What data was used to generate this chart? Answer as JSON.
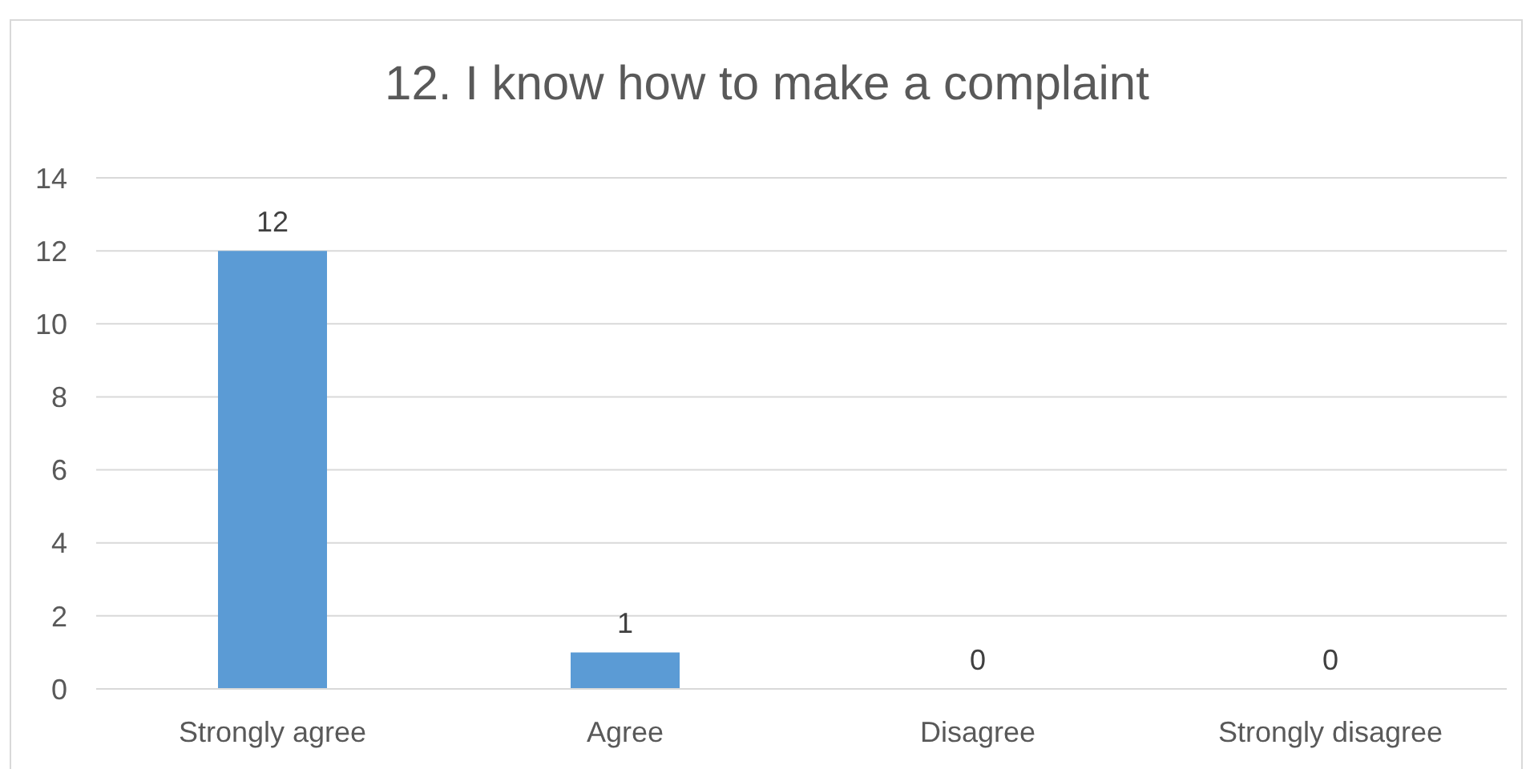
{
  "chart_data": {
    "type": "bar",
    "title": "12.  I know how to make a complaint",
    "categories": [
      "Strongly agree",
      "Agree",
      "Disagree",
      "Strongly disagree"
    ],
    "values": [
      12,
      1,
      0,
      0
    ],
    "color": "#5b9bd5",
    "ylim": [
      0,
      14
    ],
    "yticks": [
      0,
      2,
      4,
      6,
      8,
      10,
      12,
      14
    ],
    "grid": "y",
    "data_labels": true
  }
}
